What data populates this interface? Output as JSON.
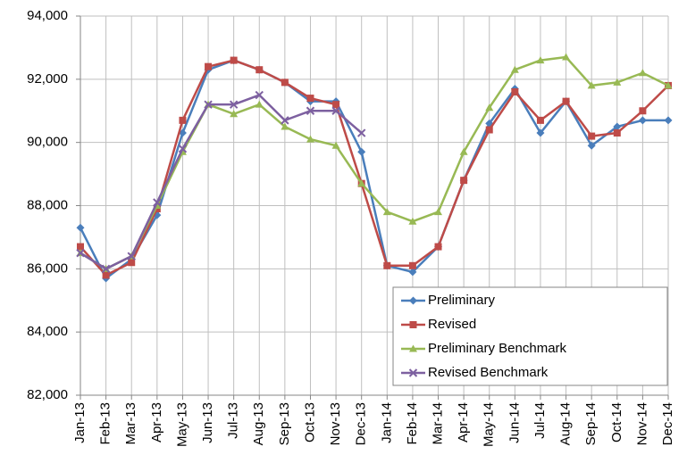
{
  "chart_data": {
    "type": "line",
    "categories": [
      "Jan-13",
      "Feb-13",
      "Mar-13",
      "Apr-13",
      "May-13",
      "Jun-13",
      "Jul-13",
      "Aug-13",
      "Sep-13",
      "Oct-13",
      "Nov-13",
      "Dec-13",
      "Jan-14",
      "Feb-14",
      "Mar-14",
      "Apr-14",
      "May-14",
      "Jun-14",
      "Jul-14",
      "Aug-14",
      "Sep-14",
      "Oct-14",
      "Nov-14",
      "Dec-14"
    ],
    "series": [
      {
        "name": "Preliminary",
        "color": "#4a7ebb",
        "marker": "diamond",
        "values": [
          87300,
          85700,
          86300,
          87700,
          90300,
          92300,
          92600,
          92300,
          91900,
          91300,
          91300,
          89700,
          86100,
          85900,
          86700,
          88800,
          90600,
          91700,
          90300,
          91300,
          89900,
          90500,
          90700,
          90700
        ]
      },
      {
        "name": "Revised",
        "color": "#be4b48",
        "marker": "square",
        "values": [
          86700,
          85800,
          86200,
          87900,
          90700,
          92400,
          92600,
          92300,
          91900,
          91400,
          91200,
          88700,
          86100,
          86100,
          86700,
          88800,
          90400,
          91600,
          90700,
          91300,
          90200,
          90300,
          91000,
          91800
        ]
      },
      {
        "name": "Preliminary Benchmark",
        "color": "#98b954",
        "marker": "triangle",
        "values": [
          86500,
          86000,
          86400,
          88000,
          89700,
          91200,
          90900,
          91200,
          90500,
          90100,
          89900,
          88700,
          87800,
          87500,
          87800,
          89700,
          91100,
          92300,
          92600,
          92700,
          91800,
          91900,
          92200,
          91800
        ]
      },
      {
        "name": "Revised Benchmark",
        "color": "#7d60a0",
        "marker": "x",
        "values": [
          86500,
          86000,
          86400,
          88100,
          89800,
          91200,
          91200,
          91500,
          90700,
          91000,
          91000,
          90300,
          null,
          null,
          null,
          null,
          null,
          null,
          null,
          null,
          null,
          null,
          null,
          null
        ]
      }
    ],
    "ylim": [
      82000,
      94000
    ],
    "yticks": [
      {
        "value": 82000,
        "label": "82,000"
      },
      {
        "value": 84000,
        "label": "84,000"
      },
      {
        "value": 86000,
        "label": "86,000"
      },
      {
        "value": 88000,
        "label": "88,000"
      },
      {
        "value": 90000,
        "label": "90,000"
      },
      {
        "value": 92000,
        "label": "92,000"
      },
      {
        "value": 94000,
        "label": "94,000"
      }
    ],
    "grid": true,
    "legend": "lower right"
  }
}
